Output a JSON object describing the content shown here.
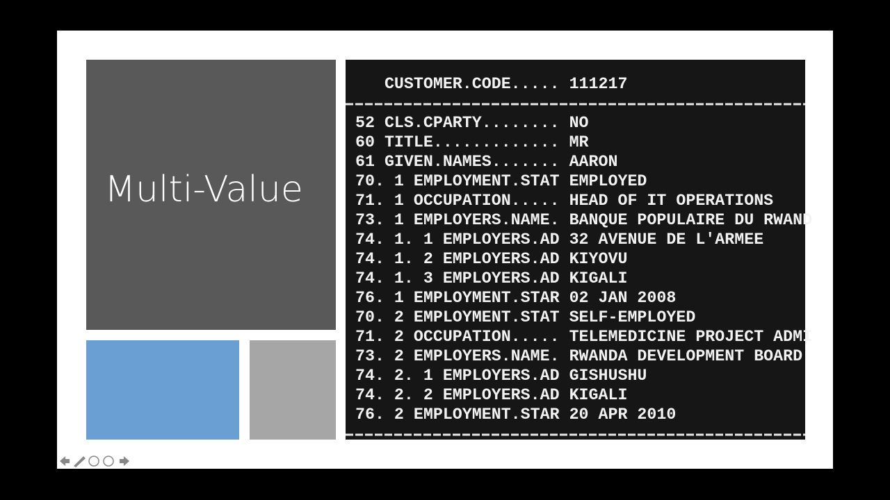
{
  "slide": {
    "title": "Multi-Value"
  },
  "terminal": {
    "header": "   CUSTOMER.CODE..... 111217",
    "rows": [
      "52 CLS.CPARTY........ NO",
      "60 TITLE............. MR",
      "61 GIVEN.NAMES....... AARON",
      "70. 1 EMPLOYMENT.STAT EMPLOYED",
      "71. 1 OCCUPATION..... HEAD OF IT OPERATIONS",
      "73. 1 EMPLOYERS.NAME. BANQUE POPULAIRE DU RWAND",
      "74. 1. 1 EMPLOYERS.AD 32 AVENUE DE L'ARMEE",
      "74. 1. 2 EMPLOYERS.AD KIYOVU",
      "74. 1. 3 EMPLOYERS.AD KIGALI",
      "76. 1 EMPLOYMENT.STAR 02 JAN 2008",
      "70. 2 EMPLOYMENT.STAT SELF-EMPLOYED",
      "71. 2 OCCUPATION..... TELEMEDICINE PROJECT ADMI",
      "73. 2 EMPLOYERS.NAME. RWANDA DEVELOPMENT BOARD",
      "74. 2. 1 EMPLOYERS.AD GISHUSHU",
      "74. 2. 2 EMPLOYERS.AD KIGALI",
      "76. 2 EMPLOYMENT.STAR 20 APR 2010"
    ]
  }
}
